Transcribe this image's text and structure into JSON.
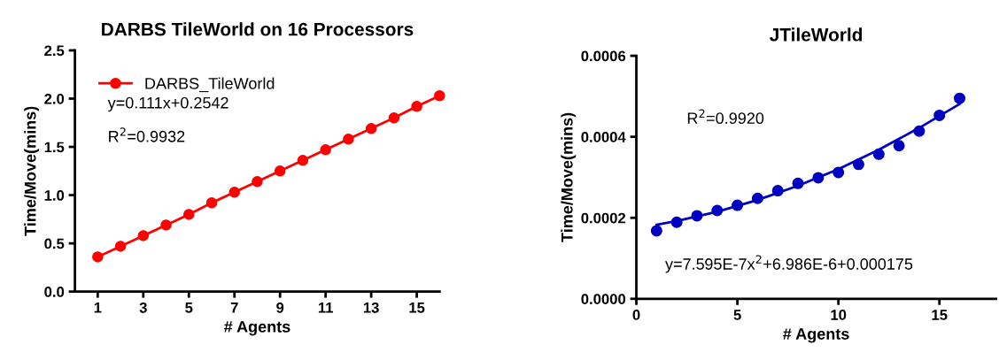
{
  "chart_data": [
    {
      "type": "line",
      "title": "DARBS TileWorld on 16 Processors",
      "xlabel": "# Agents",
      "ylabel": "Time/Move(mins)",
      "x": [
        1,
        2,
        3,
        4,
        5,
        6,
        7,
        8,
        9,
        10,
        11,
        12,
        13,
        14,
        15,
        16
      ],
      "series": [
        {
          "name": "DARBS_TileWorld",
          "color": "#ff0000",
          "values": [
            0.36,
            0.47,
            0.58,
            0.69,
            0.8,
            0.92,
            1.03,
            1.14,
            1.25,
            1.36,
            1.47,
            1.58,
            1.69,
            1.8,
            1.92,
            2.03
          ]
        }
      ],
      "marker": "circle",
      "line_style": "solid",
      "legend": "top left",
      "grid": false,
      "xlim": [
        0,
        16
      ],
      "xticks": [
        1,
        3,
        5,
        7,
        9,
        11,
        13,
        15
      ],
      "ylim": [
        0,
        2.5
      ],
      "yticks": [
        {
          "value": 0,
          "label": "0.0"
        },
        {
          "value": 0.5,
          "label": "0.5"
        },
        {
          "value": 1,
          "label": "1.0"
        },
        {
          "value": 1.5,
          "label": "1.5"
        },
        {
          "value": 2,
          "label": "2.0"
        },
        {
          "value": 2.5,
          "label": "2.5"
        }
      ],
      "annotations": [
        "y=0.111x+0.2542",
        "R$^{2}$=0.9932"
      ]
    },
    {
      "type": "scatter",
      "title": "JTileWorld",
      "xlabel": "# Agents",
      "ylabel": "Time/Move(mins)",
      "series": [
        {
          "color": "#0000c0",
          "x": [
            1,
            2,
            3,
            4,
            5,
            6,
            7,
            8,
            9,
            10,
            11,
            12,
            13,
            14,
            15,
            16
          ],
          "values": [
            0.000168,
            0.000189,
            0.000205,
            0.000218,
            0.000231,
            0.000248,
            0.000267,
            0.000285,
            0.000299,
            0.000312,
            0.000332,
            0.000357,
            0.000378,
            0.000414,
            0.000453,
            0.000495
          ]
        },
        {
          "type": "line",
          "color": "#0000c0",
          "marker": "none",
          "x": [
            1,
            2,
            4,
            6,
            8,
            10,
            12,
            14,
            16
          ],
          "values": [
            0.000183,
            0.000192,
            0.000215,
            0.000244,
            0.000279,
            0.00032,
            0.000368,
            0.000422,
            0.000481
          ]
        }
      ],
      "marker": "circle",
      "grid": false,
      "xlim": [
        0,
        17.8
      ],
      "xticks": [
        0,
        5,
        10,
        15
      ],
      "ylim": [
        0,
        0.0006
      ],
      "yticks": [
        {
          "value": 0,
          "label": "0.0000"
        },
        {
          "value": 0.0002,
          "label": "0.0002"
        },
        {
          "value": 0.0004,
          "label": "0.0004"
        },
        {
          "value": 0.0006,
          "label": "0.0006"
        }
      ],
      "annotations": [
        "R$^{2}$=0.9920",
        "y=7.595E-7x$^{2}$+6.986E-6+0.000175"
      ]
    }
  ]
}
